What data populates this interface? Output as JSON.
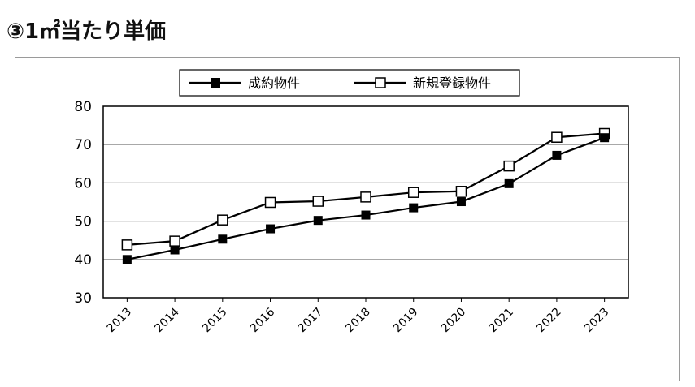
{
  "title": "③1㎡当たり単価",
  "chart_data": {
    "type": "line",
    "title": "③1㎡当たり単価",
    "x": [
      "2013",
      "2014",
      "2015",
      "2016",
      "2017",
      "2018",
      "2019",
      "2020",
      "2021",
      "2022",
      "2023"
    ],
    "ylim": [
      30,
      80
    ],
    "yticks": [
      30,
      40,
      50,
      60,
      70,
      80
    ],
    "grid": true,
    "legend": "top-center",
    "series": [
      {
        "name": "成約物件",
        "marker": "filled-square",
        "values": [
          40.0,
          42.5,
          45.3,
          48.0,
          50.2,
          51.6,
          53.5,
          55.1,
          59.8,
          67.2,
          71.8
        ]
      },
      {
        "name": "新規登録物件",
        "marker": "open-square",
        "values": [
          43.8,
          44.8,
          50.3,
          54.9,
          55.2,
          56.3,
          57.5,
          57.8,
          64.4,
          71.9,
          72.9
        ]
      }
    ]
  }
}
